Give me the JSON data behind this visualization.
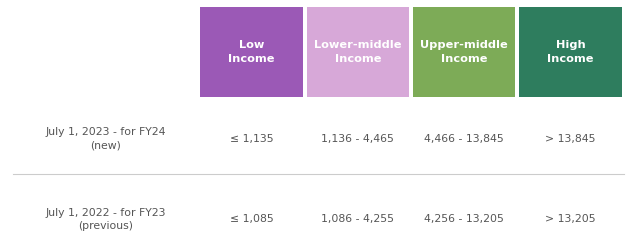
{
  "col_headers": [
    "Low\nIncome",
    "Lower-middle\nIncome",
    "Upper-middle\nIncome",
    "High\nIncome"
  ],
  "col_header_colors": [
    "#9b59b6",
    "#d7a8d8",
    "#7dab57",
    "#2e7d5e"
  ],
  "col_header_text_color": "#ffffff",
  "row_labels": [
    "July 1, 2023 - for FY24\n(new)",
    "July 1, 2022 - for FY23\n(previous)"
  ],
  "row_label_color": "#555555",
  "data": [
    [
      "≤ 1,135",
      "1,136 - 4,465",
      "4,466 - 13,845",
      "> 13,845"
    ],
    [
      "≤ 1,085",
      "1,086 - 4,255",
      "4,256 - 13,205",
      "> 13,205"
    ]
  ],
  "data_text_color": "#555555",
  "background_color": "#ffffff",
  "separator_color": "#cccccc"
}
